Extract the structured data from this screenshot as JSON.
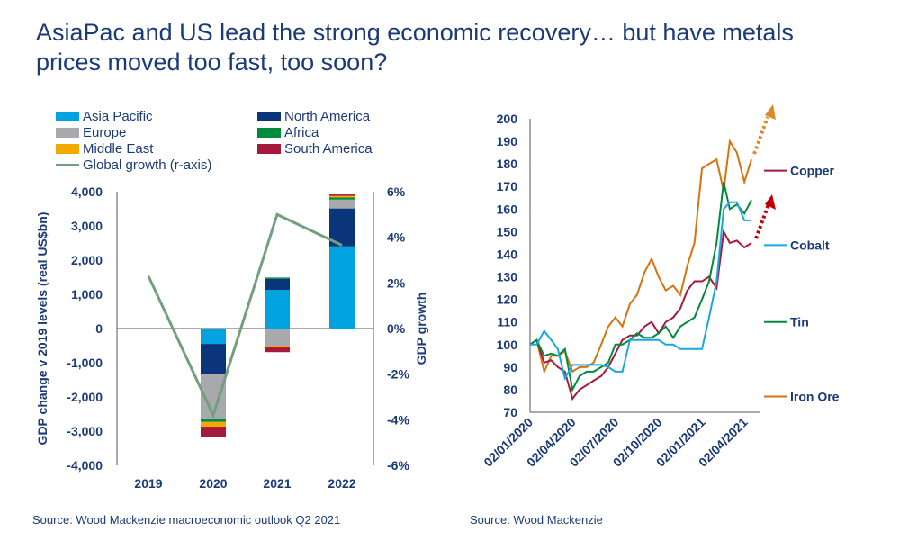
{
  "title": "AsiaPac and US lead the strong economic recovery… but have metals prices moved too fast, too soon?",
  "chart_data": [
    {
      "type": "bar",
      "stacked": true,
      "categories": [
        "2019",
        "2020",
        "2021",
        "2022"
      ],
      "ylabel": "GDP change v 2019 levels (real US$bn)",
      "ylim": [
        -4000,
        4000
      ],
      "yticks": [
        "4,000",
        "3,000",
        "2,000",
        "1,000",
        "0",
        "-1,000",
        "-2,000",
        "-3,000",
        "-4,000"
      ],
      "y2label": "GDP growth",
      "y2lim": [
        -6,
        6
      ],
      "y2ticks": [
        "6%",
        "4%",
        "2%",
        "0%",
        "-2%",
        "-4%",
        "-6%"
      ],
      "series": [
        {
          "name": "Asia Pacific",
          "color": "#00a3e0",
          "values": [
            0,
            -450,
            1130,
            2400
          ]
        },
        {
          "name": "North America",
          "color": "#0a357a",
          "values": [
            0,
            -870,
            320,
            1110
          ]
        },
        {
          "name": "Europe",
          "color": "#a7a9ac",
          "values": [
            0,
            -1330,
            -500,
            260
          ]
        },
        {
          "name": "Africa",
          "color": "#008a3e",
          "values": [
            0,
            -80,
            40,
            60
          ]
        },
        {
          "name": "Middle East",
          "color": "#f2a900",
          "values": [
            0,
            -140,
            -50,
            50
          ]
        },
        {
          "name": "South America",
          "color": "#a6193c",
          "values": [
            0,
            -290,
            -140,
            40
          ]
        }
      ],
      "line": {
        "name": "Global growth (r-axis)",
        "color": "#739f7f",
        "values": [
          2.3,
          -3.8,
          5.0,
          3.65
        ]
      },
      "source": "Source: Wood Mackenzie macroeconomic outlook Q2 2021"
    },
    {
      "type": "line",
      "ylim": [
        70,
        200
      ],
      "yticks": [
        "200",
        "190",
        "180",
        "170",
        "160",
        "150",
        "140",
        "130",
        "120",
        "110",
        "100",
        "90",
        "80",
        "70"
      ],
      "xticks": [
        "02/01/2020",
        "02/04/2020",
        "02/07/2020",
        "02/10/2020",
        "02/01/2021",
        "02/04/2021"
      ],
      "x": [
        "2020-01-02",
        "2020-01-16",
        "2020-02-01",
        "2020-02-16",
        "2020-03-01",
        "2020-03-16",
        "2020-04-01",
        "2020-04-16",
        "2020-05-01",
        "2020-05-16",
        "2020-06-01",
        "2020-06-16",
        "2020-07-01",
        "2020-07-16",
        "2020-08-01",
        "2020-08-16",
        "2020-09-01",
        "2020-09-16",
        "2020-10-01",
        "2020-10-16",
        "2020-11-01",
        "2020-11-16",
        "2020-12-01",
        "2020-12-16",
        "2021-01-01",
        "2021-01-16",
        "2021-02-01",
        "2021-02-16",
        "2021-03-01",
        "2021-03-16",
        "2021-04-01",
        "2021-04-16"
      ],
      "series": [
        {
          "name": "Iron Ore",
          "color": "#d6720f",
          "values": [
            100,
            102,
            88,
            95,
            95,
            97,
            88,
            90,
            90,
            92,
            100,
            108,
            112,
            108,
            118,
            122,
            132,
            138,
            130,
            124,
            126,
            122,
            135,
            145,
            178,
            180,
            182,
            168,
            190,
            185,
            172,
            182
          ]
        },
        {
          "name": "Copper",
          "color": "#a6193c",
          "values": [
            100,
            102,
            92,
            93,
            90,
            88,
            76,
            80,
            82,
            84,
            86,
            90,
            96,
            102,
            104,
            104,
            108,
            110,
            105,
            110,
            112,
            116,
            124,
            128,
            128,
            130,
            125,
            150,
            145,
            146,
            143,
            145
          ]
        },
        {
          "name": "Tin",
          "color": "#008a3e",
          "values": [
            100,
            102,
            95,
            96,
            95,
            98,
            80,
            86,
            88,
            88,
            90,
            92,
            100,
            100,
            102,
            105,
            103,
            103,
            105,
            108,
            103,
            108,
            110,
            112,
            120,
            128,
            145,
            172,
            160,
            162,
            158,
            164
          ]
        },
        {
          "name": "Cobalt",
          "color": "#1aa7e0",
          "values": [
            100,
            100,
            106,
            102,
            98,
            85,
            91,
            91,
            91,
            91,
            91,
            90,
            88,
            88,
            102,
            102,
            102,
            102,
            102,
            100,
            100,
            98,
            98,
            98,
            98,
            112,
            128,
            160,
            163,
            163,
            155,
            155
          ]
        }
      ],
      "labels": [
        {
          "name": "Copper",
          "at": 177
        },
        {
          "name": "Cobalt",
          "at": 144
        },
        {
          "name": "Tin",
          "at": 110
        },
        {
          "name": "Iron Ore",
          "at": 77
        }
      ],
      "annotations": [
        {
          "arrow": "dotted",
          "color": "#d98a2b"
        },
        {
          "arrow": "dotted",
          "color": "#c00000"
        }
      ],
      "source": "Source: Wood Mackenzie"
    }
  ]
}
